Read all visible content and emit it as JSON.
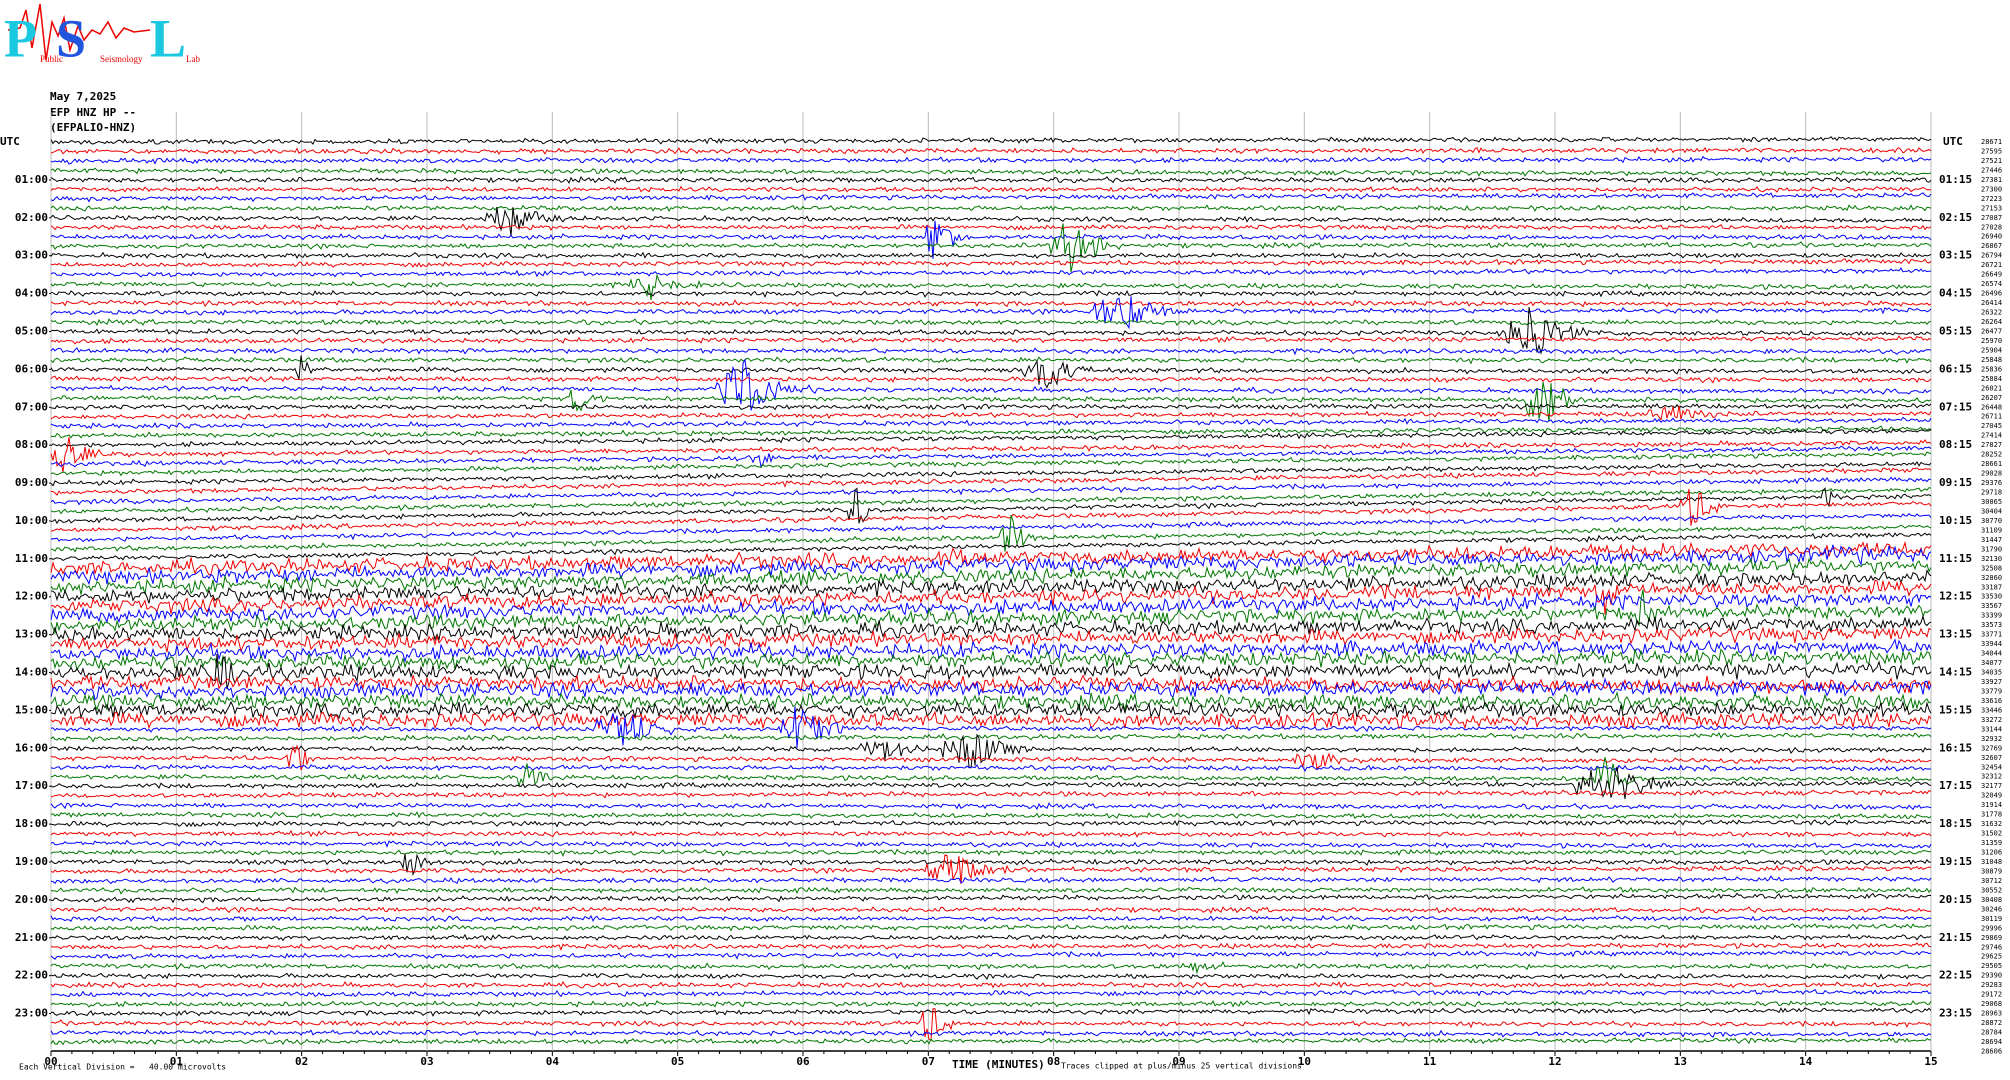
{
  "logo": {
    "letters": [
      "P",
      "S",
      "L"
    ],
    "words": [
      "Public",
      "Seismology",
      "Lab"
    ]
  },
  "header": {
    "date": "May 7,2025",
    "channel": "EFP HNZ HP --",
    "station": "(EFPALIO-HNZ)"
  },
  "left_axis": {
    "title": "UTC",
    "labels": [
      "01:00",
      "02:00",
      "03:00",
      "04:00",
      "05:00",
      "06:00",
      "07:00",
      "08:00",
      "09:00",
      "10:00",
      "11:00",
      "12:00",
      "13:00",
      "14:00",
      "15:00",
      "16:00",
      "17:00",
      "18:00",
      "19:00",
      "20:00",
      "21:00",
      "22:00",
      "23:00"
    ]
  },
  "right_axis": {
    "title": "UTC",
    "labels": [
      "01:15",
      "02:15",
      "03:15",
      "04:15",
      "05:15",
      "06:15",
      "07:15",
      "08:15",
      "09:15",
      "10:15",
      "11:15",
      "12:15",
      "13:15",
      "14:15",
      "15:15",
      "16:15",
      "17:15",
      "18:15",
      "19:15",
      "20:15",
      "21:15",
      "22:15",
      "23:15"
    ]
  },
  "trace_values": [
    28671,
    27595,
    27521,
    27446,
    27381,
    27300,
    27223,
    27153,
    27087,
    27028,
    26940,
    26867,
    26794,
    26721,
    26649,
    26574,
    26496,
    26414,
    26322,
    26264,
    26477,
    25970,
    25904,
    25848,
    25836,
    25884,
    26021,
    26207,
    26448,
    26711,
    27045,
    27414,
    27827,
    28252,
    28661,
    29028,
    29376,
    29718,
    30065,
    30404,
    30770,
    31109,
    31447,
    31790,
    32130,
    32508,
    32860,
    33187,
    33530,
    33567,
    33399,
    33573,
    33771,
    33944,
    34044,
    34077,
    34035,
    33927,
    33779,
    33616,
    33446,
    33272,
    33144,
    32932,
    32769,
    32607,
    32454,
    32312,
    32177,
    32049,
    31914,
    31778,
    31632,
    31502,
    31359,
    31206,
    31048,
    30879,
    30712,
    30552,
    30408,
    30246,
    30119,
    29996,
    29869,
    29746,
    29625,
    29505,
    29390,
    29283,
    29172,
    29068,
    28963,
    28872,
    28784,
    28694,
    28606
  ],
  "x_axis": {
    "labels": [
      "00",
      "01",
      "02",
      "03",
      "04",
      "05",
      "06",
      "07",
      "08",
      "09",
      "10",
      "11",
      "12",
      "13",
      "14",
      "15"
    ],
    "title": "TIME (MINUTES)"
  },
  "footer": {
    "scale": "Each Vertical Division =   40.00 microvolts",
    "clip": "Traces clipped at plus/minus 25 vertical divisions"
  }
}
